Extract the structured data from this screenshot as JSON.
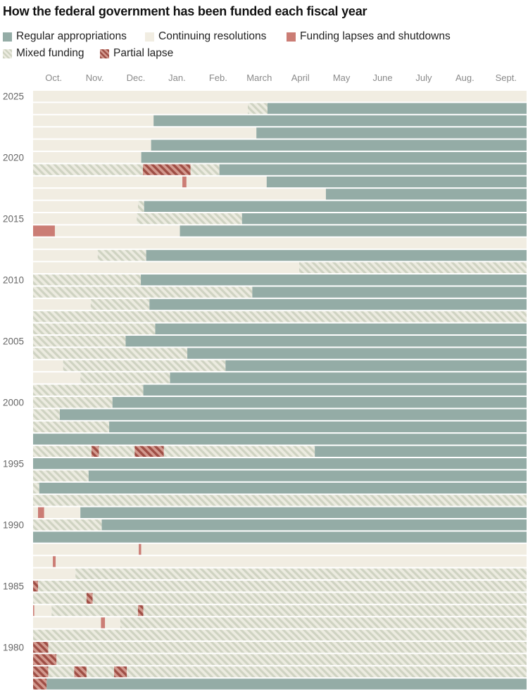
{
  "chart_data": {
    "type": "bar",
    "title": "How the federal government has been funded each fiscal year",
    "orientation": "horizontal-timeline",
    "x_unit": "months of fiscal year (0 = Oct. 1, 12 = Sept. 30)",
    "months": [
      "Oct.",
      "Nov.",
      "Dec.",
      "Jan.",
      "Feb.",
      "March",
      "April",
      "May",
      "June",
      "July",
      "Aug.",
      "Sept."
    ],
    "year_labels": [
      "2025",
      "2020",
      "2015",
      "2010",
      "2005",
      "2000",
      "1995",
      "1990",
      "1985",
      "1980"
    ],
    "legend": [
      {
        "key": "reg",
        "label": "Regular appropriations",
        "color": "#94aca6"
      },
      {
        "key": "cr",
        "label": "Continuing resolutions",
        "color": "#f1ede2"
      },
      {
        "key": "lapse",
        "label": "Funding lapses and shutdowns",
        "color": "#cb7d75"
      },
      {
        "key": "mixed",
        "label": "Mixed funding",
        "color": "#d2d5c5"
      },
      {
        "key": "partial",
        "label": "Partial lapse",
        "color": "#a2554c"
      }
    ],
    "years": [
      {
        "year": 2025,
        "segments": [
          [
            0,
            12,
            "cr"
          ]
        ]
      },
      {
        "year": 2024,
        "segments": [
          [
            0,
            5.22,
            "cr"
          ],
          [
            5.22,
            5.7,
            "mixed"
          ],
          [
            5.7,
            12,
            "reg"
          ]
        ]
      },
      {
        "year": 2023,
        "segments": [
          [
            0,
            2.93,
            "cr"
          ],
          [
            2.93,
            12,
            "reg"
          ]
        ]
      },
      {
        "year": 2022,
        "segments": [
          [
            0,
            5.43,
            "cr"
          ],
          [
            5.43,
            12,
            "reg"
          ]
        ]
      },
      {
        "year": 2021,
        "segments": [
          [
            0,
            2.87,
            "cr"
          ],
          [
            2.87,
            12,
            "reg"
          ]
        ]
      },
      {
        "year": 2020,
        "segments": [
          [
            0,
            2.63,
            "cr"
          ],
          [
            2.63,
            12,
            "reg"
          ]
        ]
      },
      {
        "year": 2019,
        "segments": [
          [
            0,
            2.67,
            "mixed"
          ],
          [
            2.67,
            3.83,
            "partial"
          ],
          [
            3.83,
            4.53,
            "mixed"
          ],
          [
            4.53,
            12,
            "reg"
          ]
        ]
      },
      {
        "year": 2018,
        "segments": [
          [
            0,
            3.63,
            "cr"
          ],
          [
            3.63,
            3.73,
            "lapse"
          ],
          [
            3.73,
            5.68,
            "cr"
          ],
          [
            5.68,
            12,
            "reg"
          ]
        ]
      },
      {
        "year": 2017,
        "segments": [
          [
            0,
            7.12,
            "cr"
          ],
          [
            7.12,
            12,
            "reg"
          ]
        ]
      },
      {
        "year": 2016,
        "segments": [
          [
            0,
            2.55,
            "cr"
          ],
          [
            2.55,
            2.7,
            "mixed"
          ],
          [
            2.7,
            12,
            "reg"
          ]
        ]
      },
      {
        "year": 2015,
        "segments": [
          [
            0,
            2.52,
            "cr"
          ],
          [
            2.52,
            5.08,
            "mixed"
          ],
          [
            5.08,
            12,
            "reg"
          ]
        ]
      },
      {
        "year": 2014,
        "segments": [
          [
            0,
            0.53,
            "lapse"
          ],
          [
            0.53,
            3.57,
            "cr"
          ],
          [
            3.57,
            12,
            "reg"
          ]
        ]
      },
      {
        "year": 2013,
        "segments": [
          [
            0,
            12,
            "cr"
          ]
        ]
      },
      {
        "year": 2012,
        "segments": [
          [
            0,
            1.57,
            "cr"
          ],
          [
            1.57,
            2.75,
            "mixed"
          ],
          [
            2.75,
            12,
            "reg"
          ]
        ]
      },
      {
        "year": 2011,
        "segments": [
          [
            0,
            6.47,
            "cr"
          ],
          [
            6.47,
            12,
            "mixed"
          ]
        ]
      },
      {
        "year": 2010,
        "segments": [
          [
            0,
            2.62,
            "mixed"
          ],
          [
            2.62,
            12,
            "reg"
          ]
        ]
      },
      {
        "year": 2009,
        "segments": [
          [
            0,
            5.33,
            "mixed"
          ],
          [
            5.33,
            12,
            "reg"
          ]
        ]
      },
      {
        "year": 2008,
        "segments": [
          [
            0,
            1.4,
            "cr"
          ],
          [
            1.4,
            2.83,
            "mixed"
          ],
          [
            2.83,
            12,
            "reg"
          ]
        ]
      },
      {
        "year": 2007,
        "segments": [
          [
            0,
            12,
            "mixed"
          ]
        ]
      },
      {
        "year": 2006,
        "segments": [
          [
            0,
            2.97,
            "mixed"
          ],
          [
            2.97,
            12,
            "reg"
          ]
        ]
      },
      {
        "year": 2005,
        "segments": [
          [
            0,
            2.25,
            "mixed"
          ],
          [
            2.25,
            12,
            "reg"
          ]
        ]
      },
      {
        "year": 2004,
        "segments": [
          [
            0,
            3.75,
            "mixed"
          ],
          [
            3.75,
            12,
            "reg"
          ]
        ]
      },
      {
        "year": 2003,
        "segments": [
          [
            0,
            0.73,
            "cr"
          ],
          [
            0.73,
            4.68,
            "mixed"
          ],
          [
            4.68,
            12,
            "reg"
          ]
        ]
      },
      {
        "year": 2002,
        "segments": [
          [
            0,
            1.15,
            "cr"
          ],
          [
            1.15,
            3.33,
            "mixed"
          ],
          [
            3.33,
            12,
            "reg"
          ]
        ]
      },
      {
        "year": 2001,
        "segments": [
          [
            0,
            2.68,
            "mixed"
          ],
          [
            2.68,
            12,
            "reg"
          ]
        ]
      },
      {
        "year": 2000,
        "segments": [
          [
            0,
            1.93,
            "mixed"
          ],
          [
            1.93,
            12,
            "reg"
          ]
        ]
      },
      {
        "year": 1999,
        "segments": [
          [
            0,
            0.65,
            "mixed"
          ],
          [
            0.65,
            12,
            "reg"
          ]
        ]
      },
      {
        "year": 1998,
        "segments": [
          [
            0,
            1.85,
            "mixed"
          ],
          [
            1.85,
            12,
            "reg"
          ]
        ]
      },
      {
        "year": 1997,
        "segments": [
          [
            0,
            12,
            "reg"
          ]
        ]
      },
      {
        "year": 1996,
        "segments": [
          [
            0,
            1.42,
            "mixed"
          ],
          [
            1.42,
            1.6,
            "partial"
          ],
          [
            1.6,
            2.47,
            "mixed"
          ],
          [
            2.47,
            3.18,
            "partial"
          ],
          [
            3.18,
            6.85,
            "mixed"
          ],
          [
            6.85,
            12,
            "reg"
          ]
        ]
      },
      {
        "year": 1995,
        "segments": [
          [
            0,
            12,
            "reg"
          ]
        ]
      },
      {
        "year": 1994,
        "segments": [
          [
            0,
            1.35,
            "mixed"
          ],
          [
            1.35,
            12,
            "reg"
          ]
        ]
      },
      {
        "year": 1993,
        "segments": [
          [
            0,
            0.15,
            "mixed"
          ],
          [
            0.15,
            12,
            "reg"
          ]
        ]
      },
      {
        "year": 1992,
        "segments": [
          [
            0,
            12,
            "mixed"
          ]
        ]
      },
      {
        "year": 1991,
        "segments": [
          [
            0,
            0.12,
            "cr"
          ],
          [
            0.12,
            0.27,
            "lapse"
          ],
          [
            0.27,
            1.15,
            "cr"
          ],
          [
            1.15,
            12,
            "reg"
          ]
        ]
      },
      {
        "year": 1990,
        "segments": [
          [
            0,
            1.67,
            "mixed"
          ],
          [
            1.67,
            12,
            "reg"
          ]
        ]
      },
      {
        "year": 1989,
        "segments": [
          [
            0,
            12,
            "reg"
          ]
        ]
      },
      {
        "year": 1988,
        "segments": [
          [
            0,
            2.57,
            "cr"
          ],
          [
            2.57,
            2.63,
            "lapse"
          ],
          [
            2.63,
            12,
            "cr"
          ]
        ]
      },
      {
        "year": 1987,
        "segments": [
          [
            0,
            0.48,
            "cr"
          ],
          [
            0.48,
            0.55,
            "lapse"
          ],
          [
            0.55,
            12,
            "cr"
          ]
        ]
      },
      {
        "year": 1986,
        "segments": [
          [
            0,
            1.03,
            "cr"
          ],
          [
            1.03,
            12,
            "mixed"
          ]
        ]
      },
      {
        "year": 1985,
        "segments": [
          [
            0,
            0.12,
            "partial"
          ],
          [
            0.12,
            12,
            "mixed"
          ]
        ]
      },
      {
        "year": 1984,
        "segments": [
          [
            0,
            1.3,
            "mixed"
          ],
          [
            1.3,
            1.45,
            "partial"
          ],
          [
            1.45,
            12,
            "mixed"
          ]
        ]
      },
      {
        "year": 1983,
        "segments": [
          [
            0,
            0.03,
            "lapse"
          ],
          [
            0.03,
            0.45,
            "cr"
          ],
          [
            0.45,
            2.55,
            "mixed"
          ],
          [
            2.55,
            2.68,
            "partial"
          ],
          [
            2.68,
            12,
            "mixed"
          ]
        ]
      },
      {
        "year": 1982,
        "segments": [
          [
            0,
            1.65,
            "cr"
          ],
          [
            1.65,
            1.75,
            "lapse"
          ],
          [
            1.75,
            2.12,
            "cr"
          ],
          [
            2.12,
            12,
            "mixed"
          ]
        ]
      },
      {
        "year": 1981,
        "segments": [
          [
            0,
            12,
            "mixed"
          ]
        ]
      },
      {
        "year": 1980,
        "segments": [
          [
            0,
            0.37,
            "partial"
          ],
          [
            0.37,
            12,
            "mixed"
          ]
        ]
      },
      {
        "year": 1979,
        "segments": [
          [
            0,
            0.57,
            "partial"
          ],
          [
            0.57,
            12,
            "mixed"
          ]
        ]
      },
      {
        "year": 1978,
        "segments": [
          [
            0,
            0.37,
            "partial"
          ],
          [
            0.37,
            1.0,
            "mixed"
          ],
          [
            1.0,
            1.3,
            "partial"
          ],
          [
            1.3,
            1.97,
            "mixed"
          ],
          [
            1.97,
            2.28,
            "partial"
          ],
          [
            2.28,
            12,
            "mixed"
          ]
        ]
      },
      {
        "year": 1977,
        "segments": [
          [
            0,
            0.33,
            "partial"
          ],
          [
            0.33,
            12,
            "reg"
          ]
        ]
      }
    ]
  }
}
